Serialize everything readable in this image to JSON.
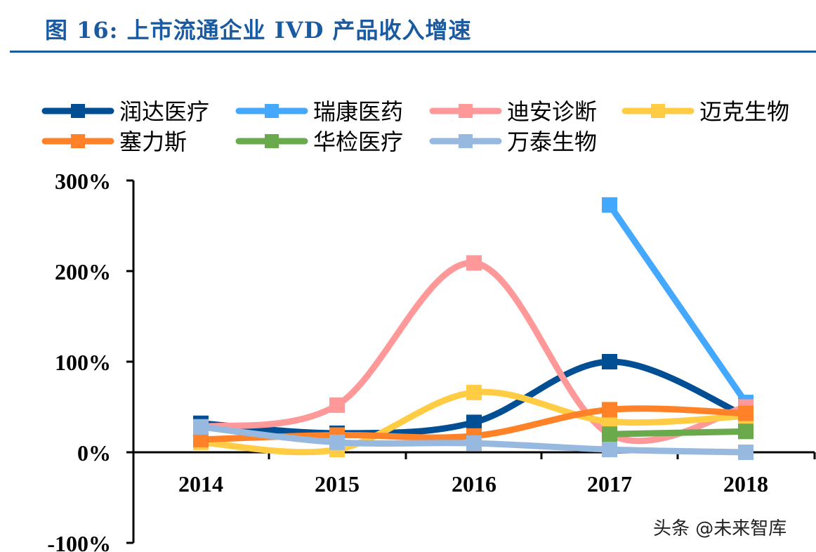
{
  "title": "图 16:  上市流通企业 IVD 产品收入增速",
  "watermark": "头条 @未来智库",
  "chart_data": {
    "type": "line",
    "title": "",
    "categories": [
      "2014",
      "2015",
      "2016",
      "2017",
      "2018"
    ],
    "ylim": [
      -100,
      300
    ],
    "yticks": [
      "300%",
      "200%",
      "100%",
      "0%",
      "-100%"
    ],
    "grid": false,
    "legend": "top",
    "series": [
      {
        "name": "润达医疗",
        "color": "#004f94",
        "values": [
          32,
          21,
          33,
          100,
          40
        ]
      },
      {
        "name": "瑞康医药",
        "color": "#45a8ff",
        "values": [
          null,
          null,
          null,
          273,
          55
        ]
      },
      {
        "name": "迪安诊断",
        "color": "#ff9999",
        "values": [
          28,
          52,
          209,
          20,
          50
        ]
      },
      {
        "name": "迈克生物",
        "color": "#ffcc44",
        "values": [
          11,
          3,
          66,
          34,
          40
        ]
      },
      {
        "name": "塞力斯",
        "color": "#ff8228",
        "values": [
          14,
          19,
          18,
          47,
          43
        ]
      },
      {
        "name": "华检医疗",
        "color": "#6aaa4c",
        "values": [
          null,
          null,
          null,
          20,
          23
        ]
      },
      {
        "name": "万泰生物",
        "color": "#97b9e0",
        "values": [
          28,
          11,
          10,
          3,
          0
        ]
      }
    ]
  }
}
